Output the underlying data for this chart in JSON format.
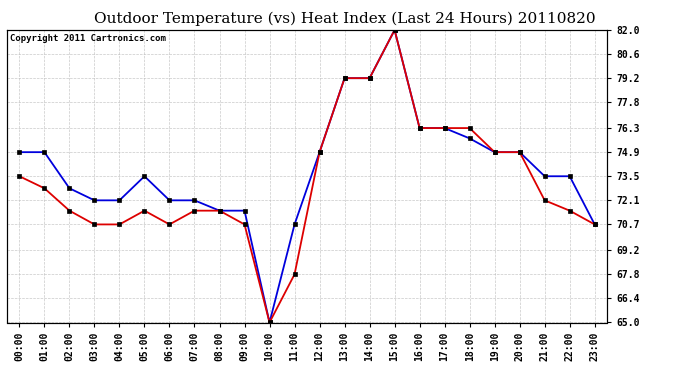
{
  "title": "Outdoor Temperature (vs) Heat Index (Last 24 Hours) 20110820",
  "copyright": "Copyright 2011 Cartronics.com",
  "x_labels": [
    "00:00",
    "01:00",
    "02:00",
    "03:00",
    "04:00",
    "05:00",
    "06:00",
    "07:00",
    "08:00",
    "09:00",
    "10:00",
    "11:00",
    "12:00",
    "13:00",
    "14:00",
    "15:00",
    "16:00",
    "17:00",
    "18:00",
    "19:00",
    "20:00",
    "21:00",
    "22:00",
    "23:00"
  ],
  "temp_blue": [
    74.9,
    74.9,
    72.8,
    72.1,
    72.1,
    73.5,
    72.1,
    72.1,
    71.5,
    71.5,
    65.0,
    70.7,
    74.9,
    79.2,
    79.2,
    82.0,
    76.3,
    76.3,
    75.7,
    74.9,
    74.9,
    73.5,
    73.5,
    70.7
  ],
  "heat_red": [
    73.5,
    72.8,
    71.5,
    70.7,
    70.7,
    71.5,
    70.7,
    71.5,
    71.5,
    70.7,
    65.0,
    67.8,
    74.9,
    79.2,
    79.2,
    82.0,
    76.3,
    76.3,
    76.3,
    74.9,
    74.9,
    72.1,
    71.5,
    70.7
  ],
  "ylim": [
    65.0,
    82.0
  ],
  "yticks": [
    65.0,
    66.4,
    67.8,
    69.2,
    70.7,
    72.1,
    73.5,
    74.9,
    76.3,
    77.8,
    79.2,
    80.6,
    82.0
  ],
  "blue_color": "#0000dd",
  "red_color": "#dd0000",
  "bg_color": "#ffffff",
  "grid_color": "#bbbbbb",
  "title_fontsize": 11,
  "copyright_fontsize": 6.5
}
